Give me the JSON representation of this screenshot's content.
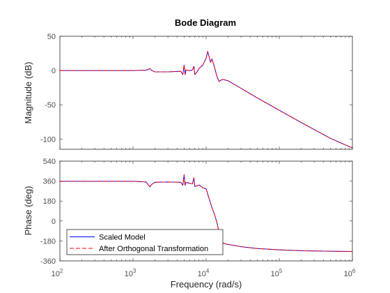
{
  "chart_data": {
    "type": "line",
    "title": "Bode Diagram",
    "xlabel": "Frequency  (rad/s)",
    "x_scale": "log",
    "xlim": [
      100,
      1000000
    ],
    "x_ticks": [
      {
        "value": 100,
        "base": "10",
        "exp": "2"
      },
      {
        "value": 1000,
        "base": "10",
        "exp": "3"
      },
      {
        "value": 10000,
        "base": "10",
        "exp": "4"
      },
      {
        "value": 100000,
        "base": "10",
        "exp": "5"
      },
      {
        "value": 1000000,
        "base": "10",
        "exp": "6"
      }
    ],
    "grid": false,
    "legend": {
      "placement": "bottom-left",
      "entries": [
        "Scaled Model",
        "After Orthogonal Transformation"
      ]
    },
    "colors": {
      "scaled_model": "#0000ff",
      "after_orthogonal": "#ff0000",
      "axes": "#262626",
      "tick_text": "#4d4d4d"
    },
    "panels": [
      {
        "ylabel": "Magnitude (dB)",
        "ylim": [
          -115,
          50
        ],
        "y_ticks": [
          "50",
          "0",
          "-50",
          "-100"
        ],
        "y_tick_values": [
          50,
          0,
          -50,
          -100
        ],
        "series": [
          {
            "name": "Scaled Model",
            "style": "solid",
            "x": [
              100,
              500,
              1000,
              1500,
              1650,
              1700,
              1800,
              2000,
              3000,
              4500,
              4800,
              5000,
              5150,
              5300,
              5600,
              6000,
              6500,
              6800,
              7000,
              7500,
              8000,
              9000,
              10000,
              10500,
              11000,
              11500,
              12000,
              13000,
              14000,
              15000,
              16000,
              17000,
              20000,
              30000,
              50000,
              100000,
              200000,
              500000,
              1000000
            ],
            "y": [
              0,
              0,
              0,
              0.5,
              2,
              3,
              0,
              -2,
              -2,
              -1,
              -6,
              8,
              -6,
              1,
              0,
              0,
              1,
              6,
              -6,
              -2,
              3,
              8,
              18,
              28,
              20,
              12,
              17,
              5,
              -8,
              -16,
              -14,
              -13,
              -15,
              -26,
              -40,
              -58,
              -76,
              -99,
              -113
            ]
          },
          {
            "name": "After Orthogonal Transformation",
            "style": "dashed",
            "x": [
              100,
              500,
              1000,
              1500,
              1650,
              1700,
              1800,
              2000,
              3000,
              4500,
              4800,
              5000,
              5150,
              5300,
              5600,
              6000,
              6500,
              6800,
              7000,
              7500,
              8000,
              9000,
              10000,
              10500,
              11000,
              11500,
              12000,
              13000,
              14000,
              15000,
              16000,
              17000,
              20000,
              30000,
              50000,
              100000,
              200000,
              500000,
              1000000
            ],
            "y": [
              0,
              0,
              0,
              0.5,
              2,
              3,
              0,
              -2,
              -2,
              -1,
              -6,
              8,
              -6,
              1,
              0,
              0,
              1,
              6,
              -6,
              -2,
              3,
              8,
              18,
              28,
              20,
              12,
              17,
              5,
              -8,
              -16,
              -14,
              -13,
              -15,
              -26,
              -40,
              -58,
              -76,
              -99,
              -113
            ]
          }
        ]
      },
      {
        "ylabel": "Phase (deg)",
        "ylim": [
          -360,
          540
        ],
        "y_ticks": [
          "540",
          "360",
          "180",
          "0",
          "-180",
          "-360"
        ],
        "y_tick_values": [
          540,
          360,
          180,
          0,
          -180,
          -360
        ],
        "series": [
          {
            "name": "Scaled Model",
            "style": "solid",
            "x": [
              100,
              1000,
              1500,
              1600,
              1700,
              1800,
              2000,
              3000,
              4500,
              4800,
              5000,
              5150,
              5300,
              5600,
              6000,
              6500,
              6800,
              7000,
              7500,
              8000,
              9000,
              10000,
              11000,
              12000,
              13000,
              14000,
              15000,
              16000,
              17000,
              18000,
              20000,
              25000,
              30000,
              50000,
              100000,
              200000,
              500000,
              1000000
            ],
            "y": [
              358,
              358,
              353,
              330,
              308,
              330,
              350,
              352,
              350,
              322,
              418,
              322,
              348,
              345,
              340,
              335,
              390,
              312,
              318,
              325,
              300,
              290,
              200,
              120,
              60,
              -10,
              -100,
              -180,
              -198,
              -205,
              -212,
              -222,
              -232,
              -248,
              -260,
              -268,
              -273,
              -275
            ]
          },
          {
            "name": "After Orthogonal Transformation",
            "style": "dashed",
            "x": [
              100,
              1000,
              1500,
              1600,
              1700,
              1800,
              2000,
              3000,
              4500,
              4800,
              5000,
              5150,
              5300,
              5600,
              6000,
              6500,
              6800,
              7000,
              7500,
              8000,
              9000,
              10000,
              11000,
              12000,
              13000,
              14000,
              15000,
              16000,
              17000,
              18000,
              20000,
              25000,
              30000,
              50000,
              100000,
              200000,
              500000,
              1000000
            ],
            "y": [
              358,
              358,
              353,
              330,
              308,
              330,
              350,
              352,
              350,
              322,
              418,
              322,
              348,
              345,
              340,
              335,
              390,
              312,
              318,
              325,
              300,
              290,
              200,
              120,
              60,
              -10,
              -100,
              -180,
              -198,
              -205,
              -212,
              -222,
              -232,
              -248,
              -260,
              -268,
              -273,
              -275
            ]
          }
        ]
      }
    ]
  }
}
